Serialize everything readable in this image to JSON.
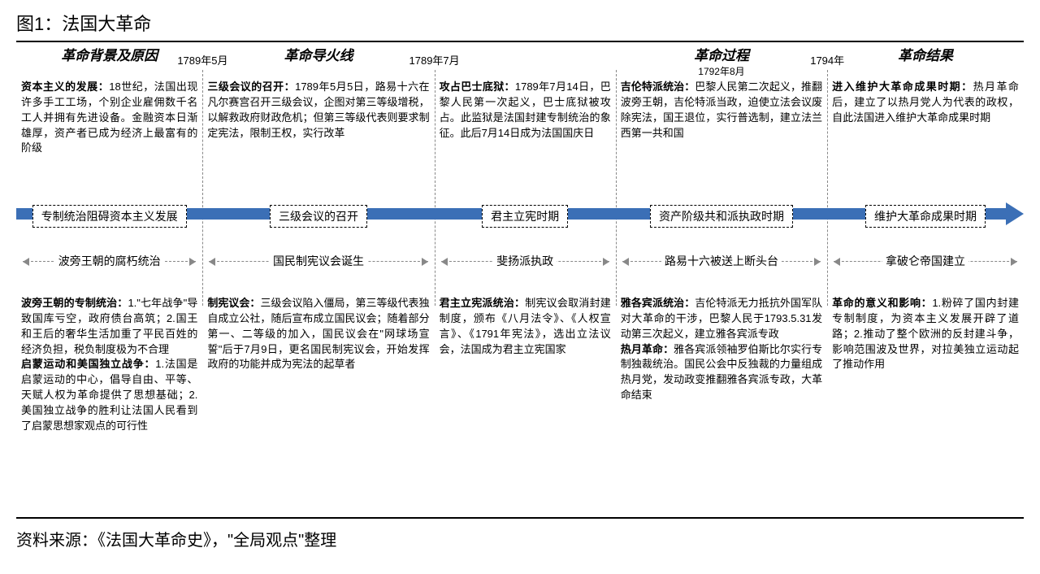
{
  "title": "图1：法国大革命",
  "source": "资料来源：《法国大革命史》，\"全局观点\"整理",
  "arrow_color": "#3b6fb6",
  "sep_color": "#888888",
  "dates_between": [
    {
      "left_pct": 18.5,
      "text": "1789年5月"
    },
    {
      "left_pct": 41.5,
      "text": "1789年7月"
    },
    {
      "left_pct": 80.5,
      "text": "1794年"
    }
  ],
  "seps_pct": [
    18.5,
    41.5,
    59.5,
    80.5
  ],
  "columns": [
    {
      "width_pct": 18.5,
      "header": "革命背景及原因",
      "subdate": "",
      "upper": "<b>资本主义的发展：</b>18世纪，法国出现许多手工工场，个别企业雇佣数千名工人并拥有先进设备。金融资本日渐雄厚，资产者已成为经济上最富有的阶级",
      "phase": "专制统治阻碍资本主义发展",
      "event": "波旁王朝的腐朽统治",
      "lower": "<b>波旁王朝的专制统治：</b>1.\"七年战争\"导致国库亏空，政府债台高筑；2.国王和王后的奢华生活加重了平民百姓的经济负担，税负制度极为不合理<br><b>启蒙运动和美国独立战争：</b>1.法国是启蒙运动的中心，倡导自由、平等、天赋人权为革命提供了思想基础；2.美国独立战争的胜利让法国人民看到了启蒙思想家观点的可行性"
    },
    {
      "width_pct": 23,
      "header": "革命导火线",
      "subdate": "",
      "upper": "<b>三级会议的召开：</b>1789年5月5日，路易十六在凡尔赛宫召开三级会议，企图对第三等级增税，以解救政府财政危机；但第三等级代表则要求制定宪法，限制王权，实行改革",
      "phase": "三级会议的召开",
      "event": "国民制宪议会诞生",
      "lower": "<b>制宪议会：</b>三级会议陷入僵局，第三等级代表独自成立公社，随后宣布成立国民议会；随着部分第一、二等级的加入，国民议会在\"网球场宣誓\"后于7月9日，更名国民制宪议会，开始发挥政府的功能并成为宪法的起草者"
    },
    {
      "width_pct": 18,
      "header": "",
      "subdate": "",
      "upper": "<b>攻占巴士底狱：</b>1789年7月14日，巴黎人民第一次起义，巴士底狱被攻占。此监狱是法国封建专制统治的象征。此后7月14日成为法国国庆日",
      "phase": "君主立宪时期",
      "event": "斐扬派执政",
      "lower": "<b>君主立宪派统治：</b>制宪议会取消封建制度，颁布《八月法令》、《人权宣言》、《1791年宪法》，选出立法议会，法国成为君主立宪国家"
    },
    {
      "width_pct": 21,
      "header": "革命过程",
      "subdate": "1792年8月",
      "upper": "<b>吉伦特派统治：</b>巴黎人民第二次起义，推翻波旁王朝，吉伦特派当政，迫使立法会议废除宪法，国王退位，实行普选制，建立法兰西第一共和国",
      "phase": "资产阶级共和派执政时期",
      "event": "路易十六被送上断头台",
      "lower": "<b>雅各宾派统治：</b>吉伦特派无力抵抗外国军队对大革命的干涉，巴黎人民于1793.5.31发动第三次起义，建立雅各宾派专政<br><b>热月革命：</b>雅各宾派领袖罗伯斯比尔实行专制独裁统治。国民公会中反独裁的力量组成热月党，发动政变推翻雅各宾派专政，大革命结束"
    },
    {
      "width_pct": 19.5,
      "header": "革命结果",
      "subdate": "",
      "upper": "<b>进入维护大革命成果时期：</b>热月革命后，建立了以热月党人为代表的政权，自此法国进入维护大革命成果时期",
      "phase": "维护大革命成果时期",
      "event": "拿破仑帝国建立",
      "lower": "<b>革命的意义和影响：</b>1.粉碎了国内封建专制制度，为资本主义发展开辟了道路；2.推动了整个欧洲的反封建斗争，影响范围波及世界，对拉美独立运动起了推动作用"
    }
  ]
}
